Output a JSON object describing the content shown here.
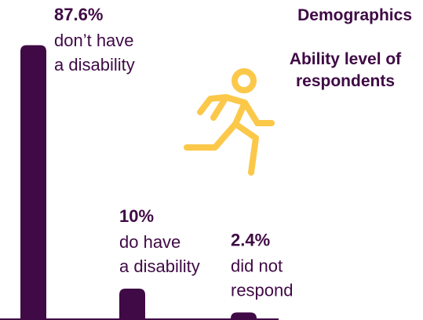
{
  "header": {
    "title": "Demographics",
    "subtitle": "Ability level of respondents"
  },
  "icon": "running-person-icon",
  "colors": {
    "bar": "#3f0a45",
    "value_text": "#3f0a45",
    "label_text": "#3f0a45",
    "icon": "#fbc84a"
  },
  "chart_data": {
    "type": "bar",
    "categories": [
      "don’t have a disability",
      "do have a disability",
      "did not respond"
    ],
    "values": [
      87.6,
      10,
      2.4
    ],
    "value_labels": [
      "87.6%",
      "10%",
      "2.4%"
    ],
    "label_lines": [
      [
        "don’t have",
        "a disability"
      ],
      [
        "do have",
        "a disability"
      ],
      [
        "did not",
        "respond"
      ]
    ],
    "ylim": [
      0,
      100
    ],
    "grid": false,
    "legend": "none"
  }
}
